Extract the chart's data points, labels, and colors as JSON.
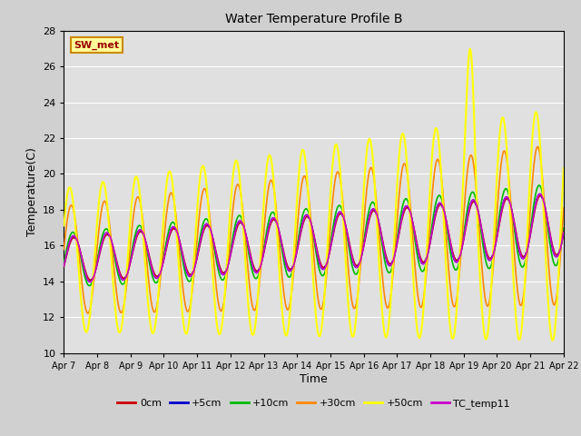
{
  "title": "Water Temperature Profile B",
  "xlabel": "Time",
  "ylabel": "Temperature(C)",
  "ylim": [
    10,
    28
  ],
  "yticks": [
    10,
    12,
    14,
    16,
    18,
    20,
    22,
    24,
    26,
    28
  ],
  "n_days": 15,
  "background_color": "#d0d0d0",
  "plot_bg_color": "#e0e0e0",
  "series": [
    {
      "label": "0cm",
      "color": "#cc0000",
      "lw": 1.2
    },
    {
      "label": "+5cm",
      "color": "#0000cc",
      "lw": 1.2
    },
    {
      "label": "+10cm",
      "color": "#00bb00",
      "lw": 1.2
    },
    {
      "label": "+30cm",
      "color": "#ff8800",
      "lw": 1.2
    },
    {
      "label": "+50cm",
      "color": "#ffff00",
      "lw": 1.5
    },
    {
      "label": "TC_temp11",
      "color": "#cc00cc",
      "lw": 1.2
    }
  ],
  "annotation_text": "SW_met",
  "annotation_color": "#990000",
  "annotation_bg": "#ffff99",
  "annotation_border": "#cc8800",
  "xtick_days": [
    7,
    8,
    9,
    10,
    11,
    12,
    13,
    14,
    15,
    16,
    17,
    18,
    19,
    20,
    21,
    22
  ]
}
